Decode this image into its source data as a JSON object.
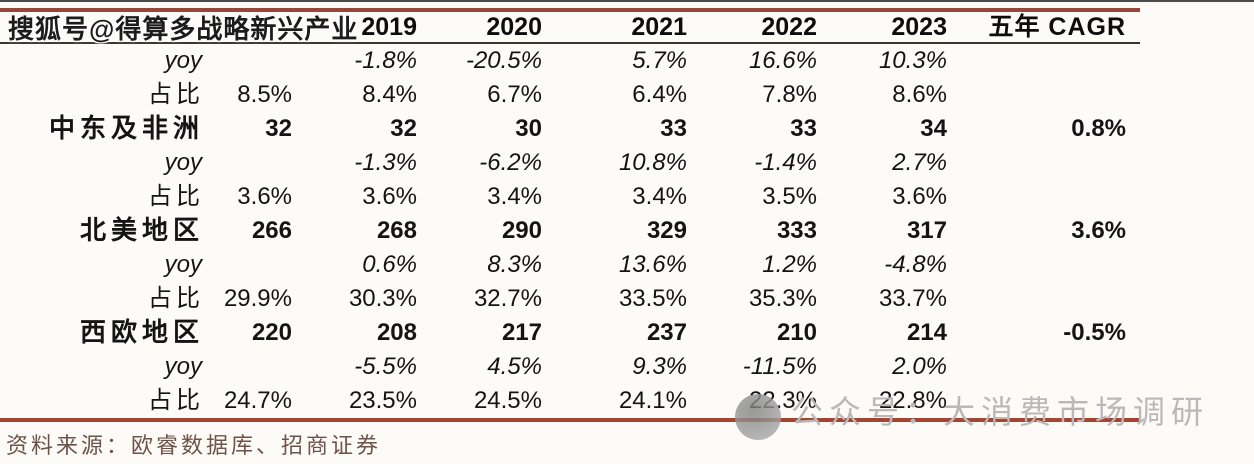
{
  "watermarks": {
    "top_text": "搜狐号@得算多战略新兴产业",
    "bottom_text": "公众号：大消费市场调研",
    "bottom_logo_icon": "wechat-account-logo-icon"
  },
  "table": {
    "header": {
      "label": "",
      "years": [
        "",
        "2019",
        "2020",
        "2021",
        "2022",
        "2023"
      ],
      "cagr_label": "五年 CAGR"
    },
    "rows": [
      {
        "type": "yoy",
        "label": "yoy",
        "values": [
          "",
          "-1.8%",
          "-20.5%",
          "5.7%",
          "16.6%",
          "10.3%"
        ],
        "cagr": ""
      },
      {
        "type": "share",
        "label": "占比",
        "values": [
          "8.5%",
          "8.4%",
          "6.7%",
          "6.4%",
          "7.8%",
          "8.6%"
        ],
        "cagr": ""
      },
      {
        "type": "region",
        "label": "中东及非洲",
        "values": [
          "32",
          "32",
          "30",
          "33",
          "33",
          "34"
        ],
        "cagr": "0.8%"
      },
      {
        "type": "yoy",
        "label": "yoy",
        "values": [
          "",
          "-1.3%",
          "-6.2%",
          "10.8%",
          "-1.4%",
          "2.7%"
        ],
        "cagr": ""
      },
      {
        "type": "share",
        "label": "占比",
        "values": [
          "3.6%",
          "3.6%",
          "3.4%",
          "3.4%",
          "3.5%",
          "3.6%"
        ],
        "cagr": ""
      },
      {
        "type": "region",
        "label": "北美地区",
        "values": [
          "266",
          "268",
          "290",
          "329",
          "333",
          "317"
        ],
        "cagr": "3.6%"
      },
      {
        "type": "yoy",
        "label": "yoy",
        "values": [
          "",
          "0.6%",
          "8.3%",
          "13.6%",
          "1.2%",
          "-4.8%"
        ],
        "cagr": ""
      },
      {
        "type": "share",
        "label": "占比",
        "values": [
          "29.9%",
          "30.3%",
          "32.7%",
          "33.5%",
          "35.3%",
          "33.7%"
        ],
        "cagr": ""
      },
      {
        "type": "region",
        "label": "西欧地区",
        "values": [
          "220",
          "208",
          "217",
          "237",
          "210",
          "214"
        ],
        "cagr": "-0.5%"
      },
      {
        "type": "yoy",
        "label": "yoy",
        "values": [
          "",
          "-5.5%",
          "4.5%",
          "9.3%",
          "-11.5%",
          "2.0%"
        ],
        "cagr": ""
      },
      {
        "type": "share",
        "label": "占比",
        "values": [
          "24.7%",
          "23.5%",
          "24.5%",
          "24.1%",
          "22.3%",
          "22.8%"
        ],
        "cagr": ""
      }
    ]
  },
  "source_note": "资料来源：欧睿数据库、招商证券",
  "colors": {
    "top_border": "#99453a",
    "header_underline": "#3e342e",
    "bottom_border": "#a5452f",
    "source_text": "#6e5348",
    "watermark_gray": "#b9b9b9"
  }
}
